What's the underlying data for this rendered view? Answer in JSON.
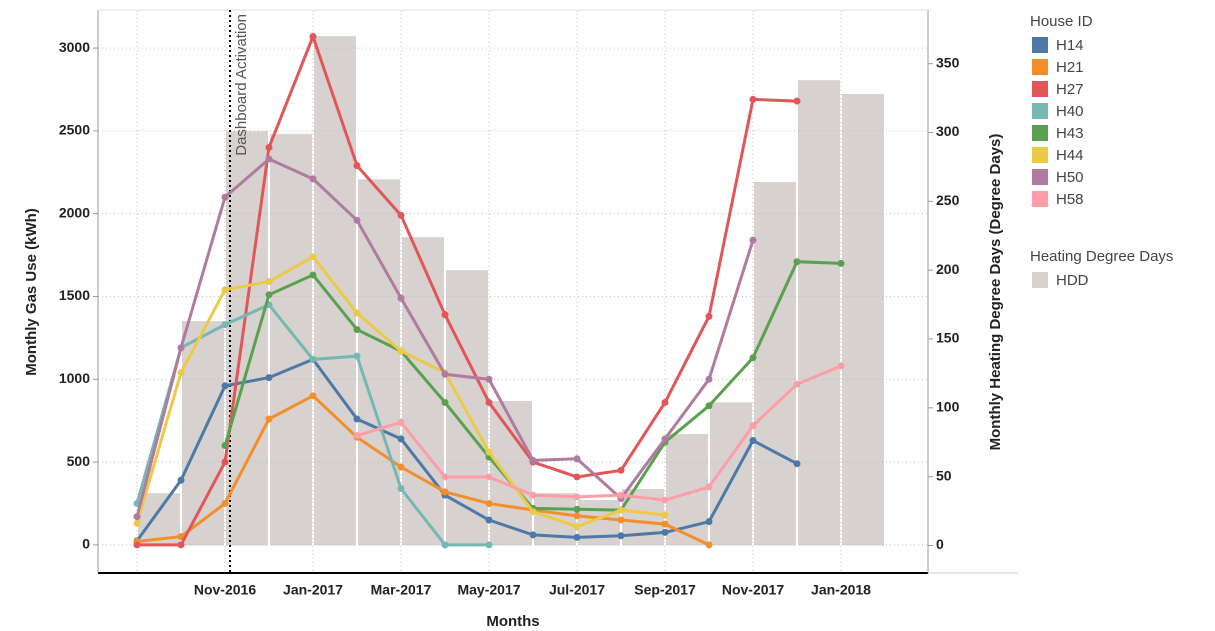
{
  "chart_data": {
    "type": "line",
    "y_label": "Monthly Gas Use (kWh)",
    "y2_label": "Monthly Heating Degree Days (Degree Days)",
    "x_label": "Months",
    "annotation": "Dashboard Activation",
    "legend_titles": [
      "House ID",
      "Heating Degree Days"
    ],
    "legend": "right",
    "grid": true,
    "categories": [
      null,
      null,
      "Nov-2016",
      null,
      "Jan-2017",
      null,
      "Mar-2017",
      null,
      "May-2017",
      null,
      "Jul-2017",
      null,
      "Sep-2017",
      null,
      "Nov-2017",
      null,
      "Jan-2018"
    ],
    "ylim": [
      -170,
      3230
    ],
    "yticks": [
      0,
      500,
      1000,
      1500,
      2000,
      2500,
      3000
    ],
    "y2lim": [
      -20,
      389
    ],
    "y2ticks": [
      0,
      50,
      100,
      150,
      200,
      250,
      300,
      350
    ],
    "series": [
      {
        "name": "HDD",
        "type": "bar",
        "axis": "y2",
        "color": "#d7d2d0",
        "values": [
          38,
          163,
          301,
          299,
          370,
          266,
          224,
          200,
          105,
          38,
          33,
          41,
          81,
          104,
          264,
          338,
          328
        ]
      },
      {
        "name": "H14",
        "color": "#4e79a7",
        "values": [
          25,
          390,
          960,
          1010,
          1120,
          760,
          640,
          300,
          150,
          60,
          45,
          55,
          75,
          140,
          630,
          490,
          null
        ]
      },
      {
        "name": "H21",
        "color": "#f28e2b",
        "values": [
          20,
          50,
          250,
          760,
          900,
          650,
          470,
          320,
          250,
          210,
          175,
          150,
          125,
          0,
          null,
          null,
          null
        ]
      },
      {
        "name": "H27",
        "color": "#e15759",
        "values": [
          0,
          0,
          500,
          2400,
          3070,
          2290,
          1990,
          1390,
          860,
          500,
          410,
          450,
          860,
          1380,
          2690,
          2680,
          null
        ]
      },
      {
        "name": "H40",
        "color": "#76b7b2",
        "values": [
          250,
          1190,
          1330,
          1450,
          1120,
          1140,
          340,
          0,
          0,
          null,
          null,
          null,
          null,
          null,
          null,
          null,
          null
        ]
      },
      {
        "name": "H43",
        "color": "#59a14f",
        "values": [
          null,
          null,
          600,
          1510,
          1630,
          1300,
          1170,
          860,
          530,
          220,
          215,
          210,
          620,
          840,
          1130,
          1710,
          1700
        ]
      },
      {
        "name": "H44",
        "color": "#edc948",
        "values": [
          130,
          1040,
          1540,
          1590,
          1740,
          1400,
          1170,
          1040,
          560,
          200,
          110,
          210,
          180,
          null,
          null,
          null,
          null
        ]
      },
      {
        "name": "H50",
        "color": "#b07aa1",
        "values": [
          170,
          1190,
          2100,
          2330,
          2210,
          1960,
          1490,
          1030,
          1000,
          510,
          520,
          280,
          640,
          1000,
          1840,
          null,
          null
        ]
      },
      {
        "name": "H58",
        "color": "#ff9da7",
        "values": [
          null,
          null,
          null,
          null,
          null,
          660,
          740,
          410,
          410,
          300,
          290,
          300,
          270,
          350,
          720,
          970,
          1080
        ]
      }
    ]
  }
}
